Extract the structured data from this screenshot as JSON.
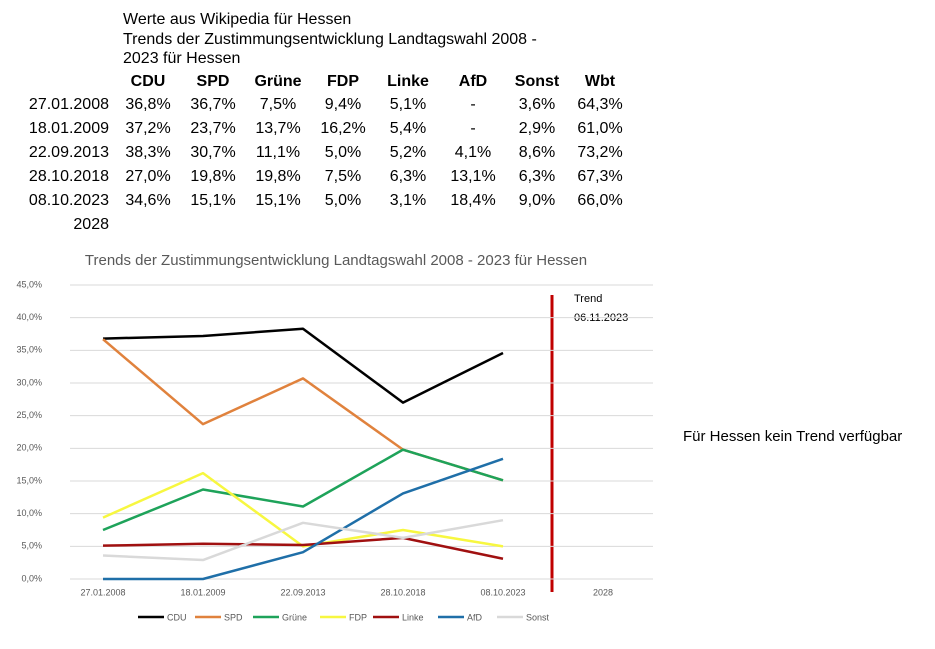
{
  "header": {
    "lines": [
      "Werte aus Wikipedia für Hessen",
      "Trends der Zustimmungsentwicklung Landtagswahl 2008 -",
      "2023 für Hessen"
    ]
  },
  "table": {
    "columns": [
      "CDU",
      "SPD",
      "Grüne",
      "FDP",
      "Linke",
      "AfD",
      "Sonst",
      "Wbt"
    ],
    "rows": [
      {
        "date": "27.01.2008",
        "cells": [
          "36,8%",
          "36,7%",
          "7,5%",
          "9,4%",
          "5,1%",
          "-",
          "3,6%",
          "64,3%"
        ]
      },
      {
        "date": "18.01.2009",
        "cells": [
          "37,2%",
          "23,7%",
          "13,7%",
          "16,2%",
          "5,4%",
          "-",
          "2,9%",
          "61,0%"
        ]
      },
      {
        "date": "22.09.2013",
        "cells": [
          "38,3%",
          "30,7%",
          "11,1%",
          "5,0%",
          "5,2%",
          "4,1%",
          "8,6%",
          "73,2%"
        ]
      },
      {
        "date": "28.10.2018",
        "cells": [
          "27,0%",
          "19,8%",
          "19,8%",
          "7,5%",
          "6,3%",
          "13,1%",
          "6,3%",
          "67,3%"
        ]
      },
      {
        "date": "08.10.2023",
        "cells": [
          "34,6%",
          "15,1%",
          "15,1%",
          "5,0%",
          "3,1%",
          "18,4%",
          "9,0%",
          "66,0%"
        ]
      },
      {
        "date": "2028",
        "cells": []
      }
    ]
  },
  "chart_data": {
    "type": "line",
    "title": "Trends der Zustimmungsentwicklung Landtagswahl 2008 - 2023 für Hessen",
    "categories": [
      "27.01.2008",
      "18.01.2009",
      "22.09.2013",
      "28.10.2018",
      "08.10.2023",
      "2028"
    ],
    "series": [
      {
        "name": "CDU",
        "color": "#000000",
        "values": [
          36.8,
          37.2,
          38.3,
          27.0,
          34.6,
          null
        ]
      },
      {
        "name": "SPD",
        "color": "#e0823d",
        "values": [
          36.7,
          23.7,
          30.7,
          19.8,
          15.1,
          null
        ]
      },
      {
        "name": "Grüne",
        "color": "#1ea35a",
        "values": [
          7.5,
          13.7,
          11.1,
          19.8,
          15.1,
          null
        ]
      },
      {
        "name": "FDP",
        "color": "#f7f740",
        "values": [
          9.4,
          16.2,
          5.0,
          7.5,
          5.0,
          null
        ]
      },
      {
        "name": "Linke",
        "color": "#a01010",
        "values": [
          5.1,
          5.4,
          5.2,
          6.3,
          3.1,
          null
        ]
      },
      {
        "name": "AfD",
        "color": "#1f6fa8",
        "values": [
          0,
          0,
          4.1,
          13.1,
          18.4,
          null
        ]
      },
      {
        "name": "Sonst",
        "color": "#d9d9d9",
        "values": [
          3.6,
          2.9,
          8.6,
          6.3,
          9.0,
          null
        ]
      }
    ],
    "ylim": [
      0,
      45
    ],
    "yticks": [
      {
        "value": 0,
        "label": "0,0%"
      },
      {
        "value": 5,
        "label": "5,0%"
      },
      {
        "value": 10,
        "label": "10,0%"
      },
      {
        "value": 15,
        "label": "15,0%"
      },
      {
        "value": 20,
        "label": "20,0%"
      },
      {
        "value": 25,
        "label": "25,0%"
      },
      {
        "value": 30,
        "label": "30,0%"
      },
      {
        "value": 35,
        "label": "35,0%"
      },
      {
        "value": 40,
        "label": "40,0%"
      },
      {
        "value": 45,
        "label": "45,0%"
      }
    ],
    "grid": true,
    "legend": "bottom",
    "annotations": [
      "Trend",
      "06.11.2023"
    ]
  },
  "side_note": "Für Hessen kein Trend verfügbar"
}
